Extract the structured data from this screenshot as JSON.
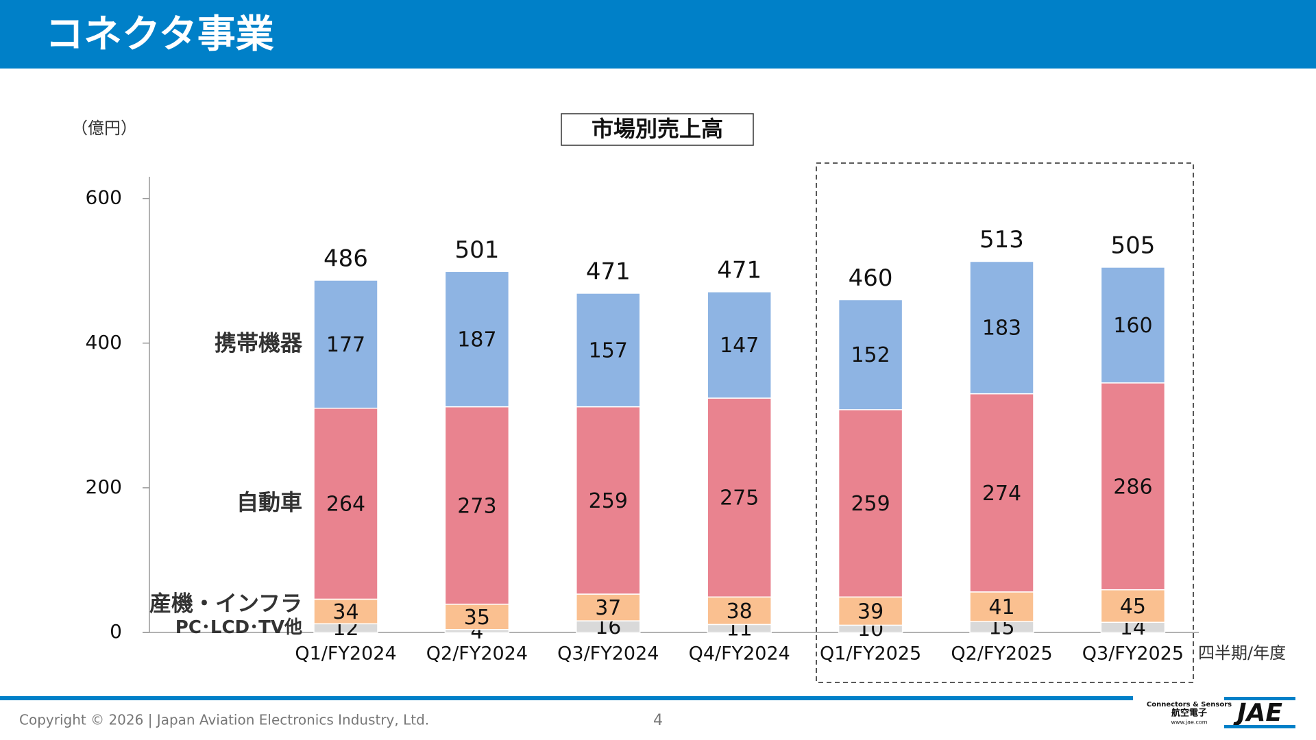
{
  "header": {
    "title": "コネクタ事業"
  },
  "chart_data": {
    "type": "bar",
    "stacked": true,
    "title": "市場別売上高",
    "y_unit": "（億円）",
    "x_label": "四半期/年度",
    "categories": [
      "Q1/FY2024",
      "Q2/FY2024",
      "Q3/FY2024",
      "Q4/FY2024",
      "Q1/FY2025",
      "Q2/FY2025",
      "Q3/FY2025"
    ],
    "series": [
      {
        "name": "PC･LCD･TV他",
        "color": "#d9d9d9",
        "values": [
          12,
          4,
          16,
          11,
          10,
          15,
          14
        ]
      },
      {
        "name": "産機・インフラ",
        "color": "#fac090",
        "values": [
          34,
          35,
          37,
          38,
          39,
          41,
          45
        ]
      },
      {
        "name": "自動車",
        "color": "#e9838f",
        "values": [
          264,
          273,
          259,
          275,
          259,
          274,
          286
        ]
      },
      {
        "name": "携帯機器",
        "color": "#8eb4e3",
        "values": [
          177,
          187,
          157,
          147,
          152,
          183,
          160
        ]
      }
    ],
    "totals": [
      486,
      501,
      471,
      471,
      460,
      513,
      505
    ],
    "ylim": [
      0,
      630
    ],
    "yticks": [
      0,
      200,
      400,
      600
    ]
  },
  "footer": {
    "copyright": "Copyright © 2026 | Japan Aviation Electronics Industry, Ltd.",
    "page": "4",
    "logo_tagline": "Connectors & Sensors",
    "logo_company": "航空電子",
    "logo_url": "www.jae.com",
    "logo_mark": "JAE"
  }
}
